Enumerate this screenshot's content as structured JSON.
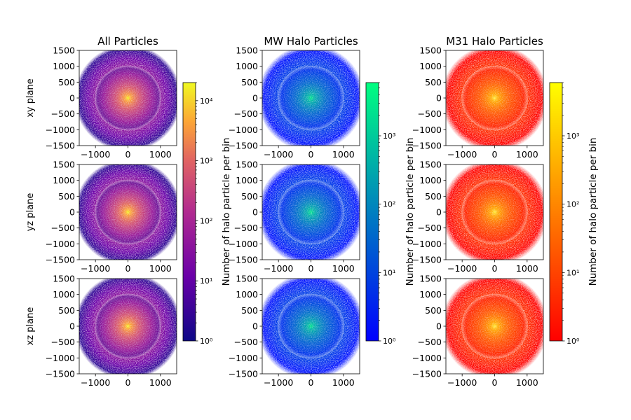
{
  "chart_data": {
    "type": "heatmap",
    "columns": [
      {
        "title": "All Particles",
        "colormap": "plasma",
        "colorbar": {
          "scale": "log",
          "range": [
            1,
            20000
          ],
          "ticks": [
            "10⁰",
            "10¹",
            "10²",
            "10³",
            "10⁴"
          ],
          "tick_values": [
            1,
            10,
            100,
            1000,
            10000
          ],
          "label": "Number of halo particle per bin"
        }
      },
      {
        "title": "MW Halo Particles",
        "colormap": "winter",
        "colorbar": {
          "scale": "log",
          "range": [
            1,
            6000
          ],
          "ticks": [
            "10⁰",
            "10¹",
            "10²",
            "10³"
          ],
          "tick_values": [
            1,
            10,
            100,
            1000
          ],
          "label": "Number of halo particle per bin"
        }
      },
      {
        "title": "M31 Halo Particles",
        "colormap": "autumn",
        "colorbar": {
          "scale": "log",
          "range": [
            1,
            6000
          ],
          "ticks": [
            "10⁰",
            "10¹",
            "10²",
            "10³"
          ],
          "tick_values": [
            1,
            10,
            100,
            1000
          ],
          "label": "Number of halo particle per bin"
        }
      }
    ],
    "rows": [
      "xy plane",
      "yz plane",
      "xz plane"
    ],
    "x_ticks": [
      -1000,
      0,
      1000
    ],
    "x_tick_labels": [
      "−1000",
      "0",
      "1000"
    ],
    "y_ticks": [
      1500,
      1000,
      500,
      0,
      -500,
      -1000,
      -1500
    ],
    "y_tick_labels": [
      "1500",
      "1000",
      "500",
      "0",
      "−500",
      "−1000",
      "−1500"
    ],
    "xlim": [
      -1500,
      1500
    ],
    "ylim": [
      -1500,
      1500
    ],
    "distribution": "centrally concentrated halo, peak density at (0, 0)"
  }
}
